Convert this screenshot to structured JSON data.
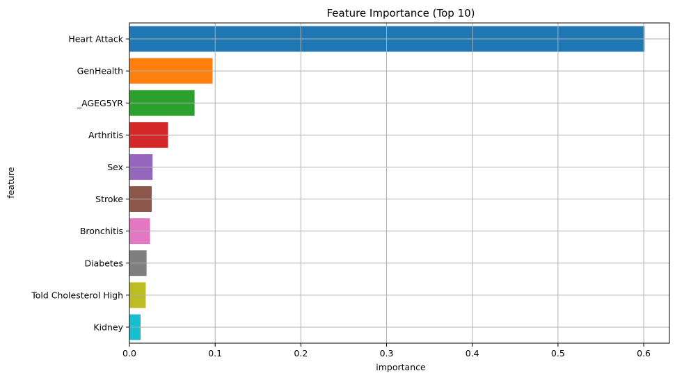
{
  "chart_data": {
    "type": "bar",
    "orientation": "horizontal",
    "title": "Feature Importance (Top 10)",
    "xlabel": "importance",
    "ylabel": "feature",
    "xlim": [
      0,
      0.63
    ],
    "xticks": [
      "0.0",
      "0.1",
      "0.2",
      "0.3",
      "0.4",
      "0.5",
      "0.6"
    ],
    "grid": true,
    "categories": [
      "Heart Attack",
      "GenHealth",
      "_AGEG5YR",
      "Arthritis",
      "Sex",
      "Stroke",
      "Bronchitis",
      "Diabetes",
      "Told Cholesterol High",
      "Kidney"
    ],
    "values": [
      0.601,
      0.097,
      0.076,
      0.045,
      0.027,
      0.026,
      0.024,
      0.02,
      0.019,
      0.013
    ],
    "colors": [
      "#1f77b4",
      "#ff7f0e",
      "#2ca02c",
      "#d62728",
      "#9467bd",
      "#8c564b",
      "#e377c2",
      "#7f7f7f",
      "#bcbd22",
      "#17becf"
    ]
  }
}
